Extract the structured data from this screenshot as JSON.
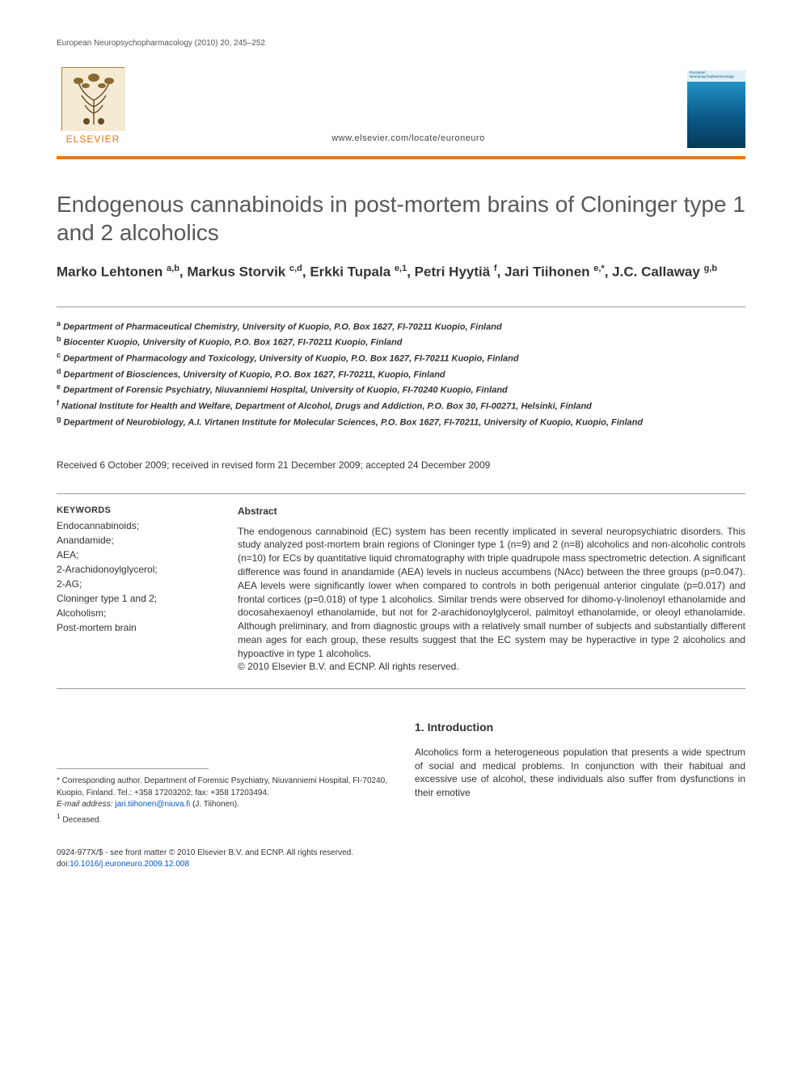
{
  "running_head": "European Neuropsychopharmacology (2010) 20, 245–252",
  "header": {
    "elsevier_word": "ELSEVIER",
    "locate_url": "www.elsevier.com/locate/euroneuro",
    "journal_cover_text": "European Neuropsychopharmacology"
  },
  "title": "Endogenous cannabinoids in post-mortem brains of Cloninger type 1 and 2 alcoholics",
  "authors_html": "Marko Lehtonen <sup>a,b</sup>, Markus Storvik <sup>c,d</sup>, Erkki Tupala <sup>e,1</sup>, Petri Hyytiä <sup>f</sup>, Jari Tiihonen <sup>e,*</sup>, J.C. Callaway <sup>g,b</sup>",
  "affiliations": [
    "a Department of Pharmaceutical Chemistry, University of Kuopio, P.O. Box 1627, FI-70211 Kuopio, Finland",
    "b Biocenter Kuopio, University of Kuopio, P.O. Box 1627, FI-70211 Kuopio, Finland",
    "c Department of Pharmacology and Toxicology, University of Kuopio, P.O. Box 1627, FI-70211 Kuopio, Finland",
    "d Department of Biosciences, University of Kuopio, P.O. Box 1627, FI-70211, Kuopio, Finland",
    "e Department of Forensic Psychiatry, Niuvanniemi Hospital, University of Kuopio, FI-70240 Kuopio, Finland",
    "f National Institute for Health and Welfare, Department of Alcohol, Drugs and Addiction, P.O. Box 30, FI-00271, Helsinki, Finland",
    "g Department of Neurobiology, A.I. Virtanen Institute for Molecular Sciences, P.O. Box 1627, FI-70211, University of Kuopio, Kuopio, Finland"
  ],
  "dates": "Received 6 October 2009; received in revised form 21 December 2009; accepted 24 December 2009",
  "keywords_head": "KEYWORDS",
  "keywords": [
    "Endocannabinoids;",
    "Anandamide;",
    "AEA;",
    "2-Arachidonoylglycerol;",
    "2-AG;",
    "Cloninger type 1 and 2;",
    "Alcoholism;",
    "Post-mortem brain"
  ],
  "abstract_head": "Abstract",
  "abstract_text": "The endogenous cannabinoid (EC) system has been recently implicated in several neuropsychiatric disorders. This study analyzed post-mortem brain regions of Cloninger type 1 (n=9) and 2 (n=8) alcoholics and non-alcoholic controls (n=10) for ECs by quantitative liquid chromatography with triple quadrupole mass spectrometric detection. A significant difference was found in anandamide (AEA) levels in nucleus accumbens (NAcc) between the three groups (p=0.047). AEA levels were significantly lower when compared to controls in both perigenual anterior cingulate (p=0.017) and frontal cortices (p=0.018) of type 1 alcoholics. Similar trends were observed for dihomo-γ-linolenoyl ethanolamide and docosahexaenoyl ethanolamide, but not for 2-arachidonoylglycerol, palmitoyl ethanolamide, or oleoyl ethanolamide. Although preliminary, and from diagnostic groups with a relatively small number of subjects and substantially different mean ages for each group, these results suggest that the EC system may be hyperactive in type 2 alcoholics and hypoactive in type 1 alcoholics.",
  "copyright_abstract": "© 2010 Elsevier B.V. and ECNP. All rights reserved.",
  "intro_head": "1. Introduction",
  "intro_text": "Alcoholics form a heterogeneous population that presents a wide spectrum of social and medical problems. In conjunction with their habitual and excessive use of alcohol, these individuals also suffer from dysfunctions in their emotive",
  "corr": {
    "star": "* Corresponding author. Department of Forensic Psychiatry, Niuvanniemi Hospital, FI-70240, Kuopio, Finland. Tel.: +358 17203202; fax: +358 17203494.",
    "email_label": "E-mail address:",
    "email": "jari.tiihonen@niuva.fi",
    "email_suffix": "(J. Tiihonen).",
    "deceased": "1 Deceased."
  },
  "footer": {
    "line1": "0924-977X/$ - see front matter © 2010 Elsevier B.V. and ECNP. All rights reserved.",
    "doi_label": "doi:",
    "doi": "10.1016/j.euroneuro.2009.12.008"
  },
  "colors": {
    "orange": "#e67817",
    "grey_rule": "#9a9a9a",
    "title_grey": "#585858",
    "link_blue": "#0055cc"
  }
}
